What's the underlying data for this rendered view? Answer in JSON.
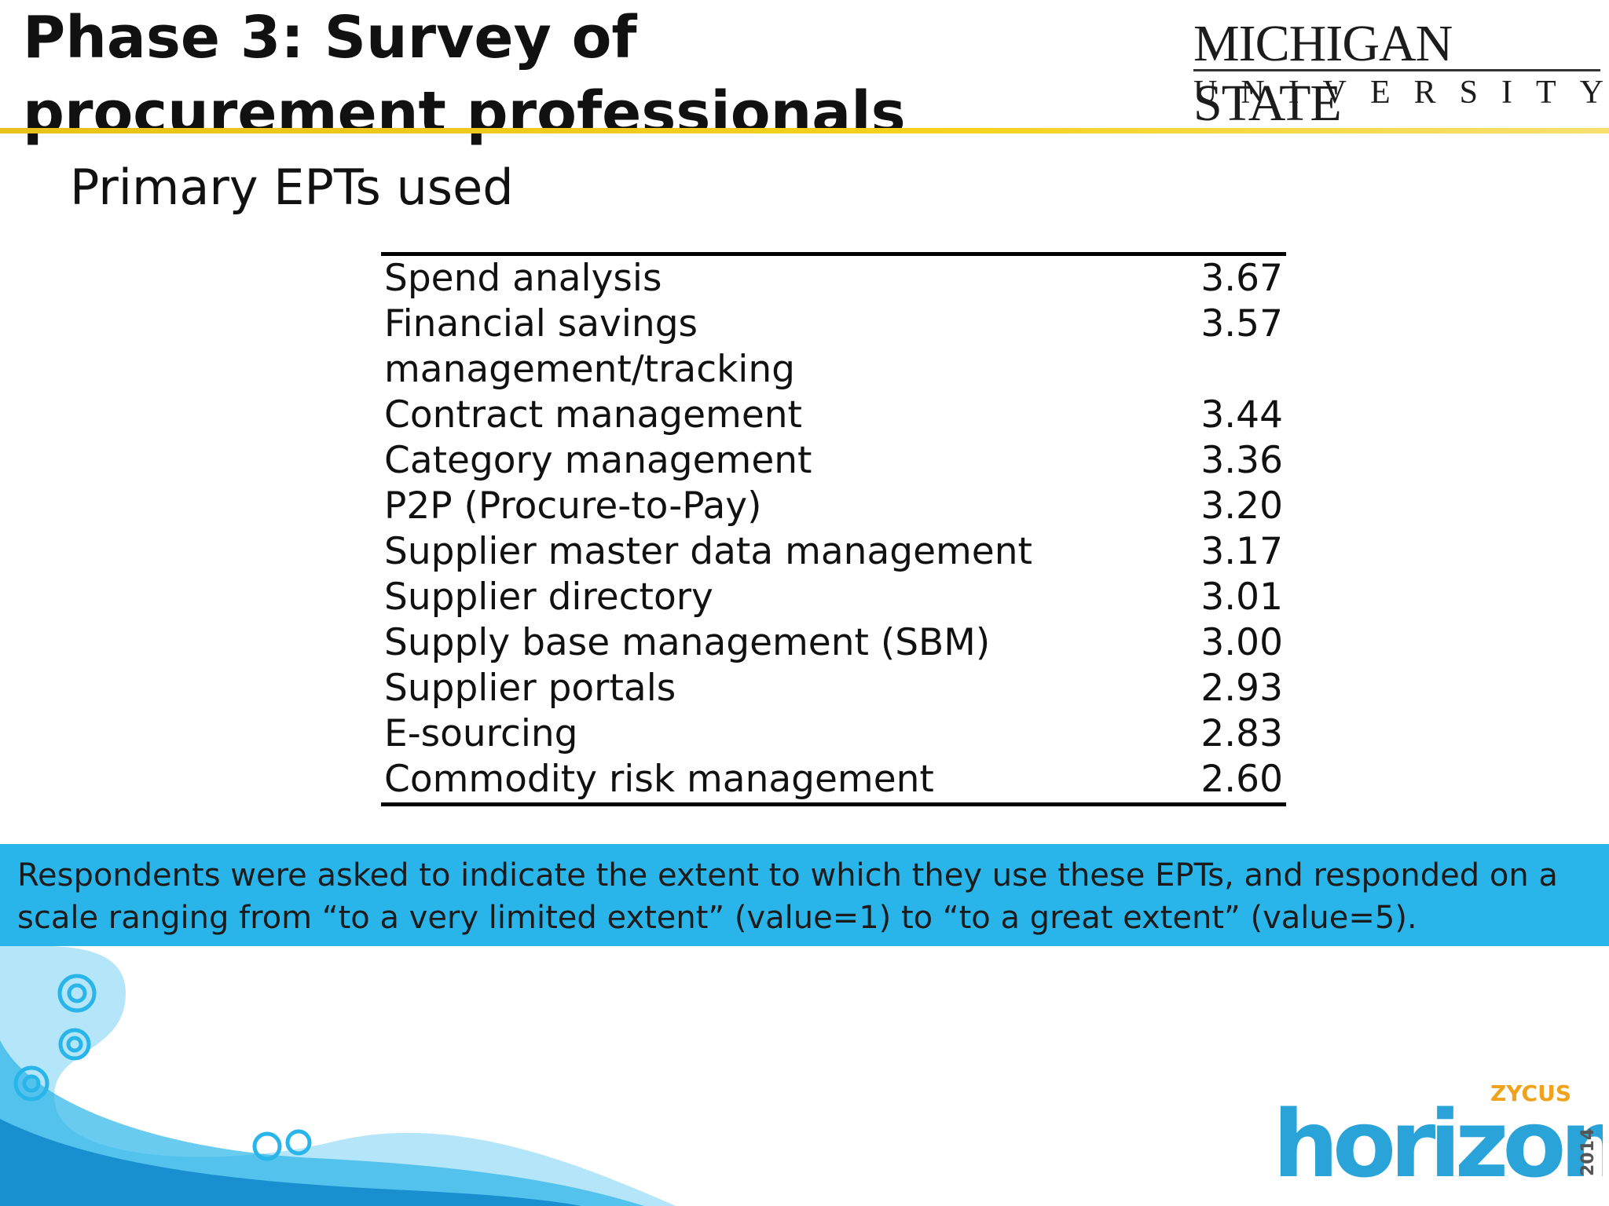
{
  "header": {
    "title": "Phase 3: Survey of procurement professionals",
    "logo_line1": "MICHIGAN STATE",
    "logo_line2": "UNIVERSITY"
  },
  "subtitle": "Primary EPTs used",
  "table": {
    "rows": [
      [
        "Spend analysis",
        "3.67"
      ],
      [
        "Financial savings management/tracking",
        "3.57"
      ],
      [
        "Contract management",
        "3.44"
      ],
      [
        "Category management",
        "3.36"
      ],
      [
        "P2P (Procure-to-Pay)",
        "3.20"
      ],
      [
        "Supplier master data management",
        "3.17"
      ],
      [
        "Supplier directory",
        "3.01"
      ],
      [
        "Supply base management (SBM)",
        "3.00"
      ],
      [
        "Supplier portals",
        "2.93"
      ],
      [
        "E-sourcing",
        "2.83"
      ],
      [
        "Commodity risk management",
        "2.60"
      ]
    ]
  },
  "note": "Respondents were asked to indicate the extent to which they use these EPTs, and responded on a scale ranging from “to a very limited extent” (value=1) to “to a great extent” (value=5).",
  "footer": {
    "brand": "ZYCUS",
    "logo": "horizon",
    "year": "2014"
  }
}
